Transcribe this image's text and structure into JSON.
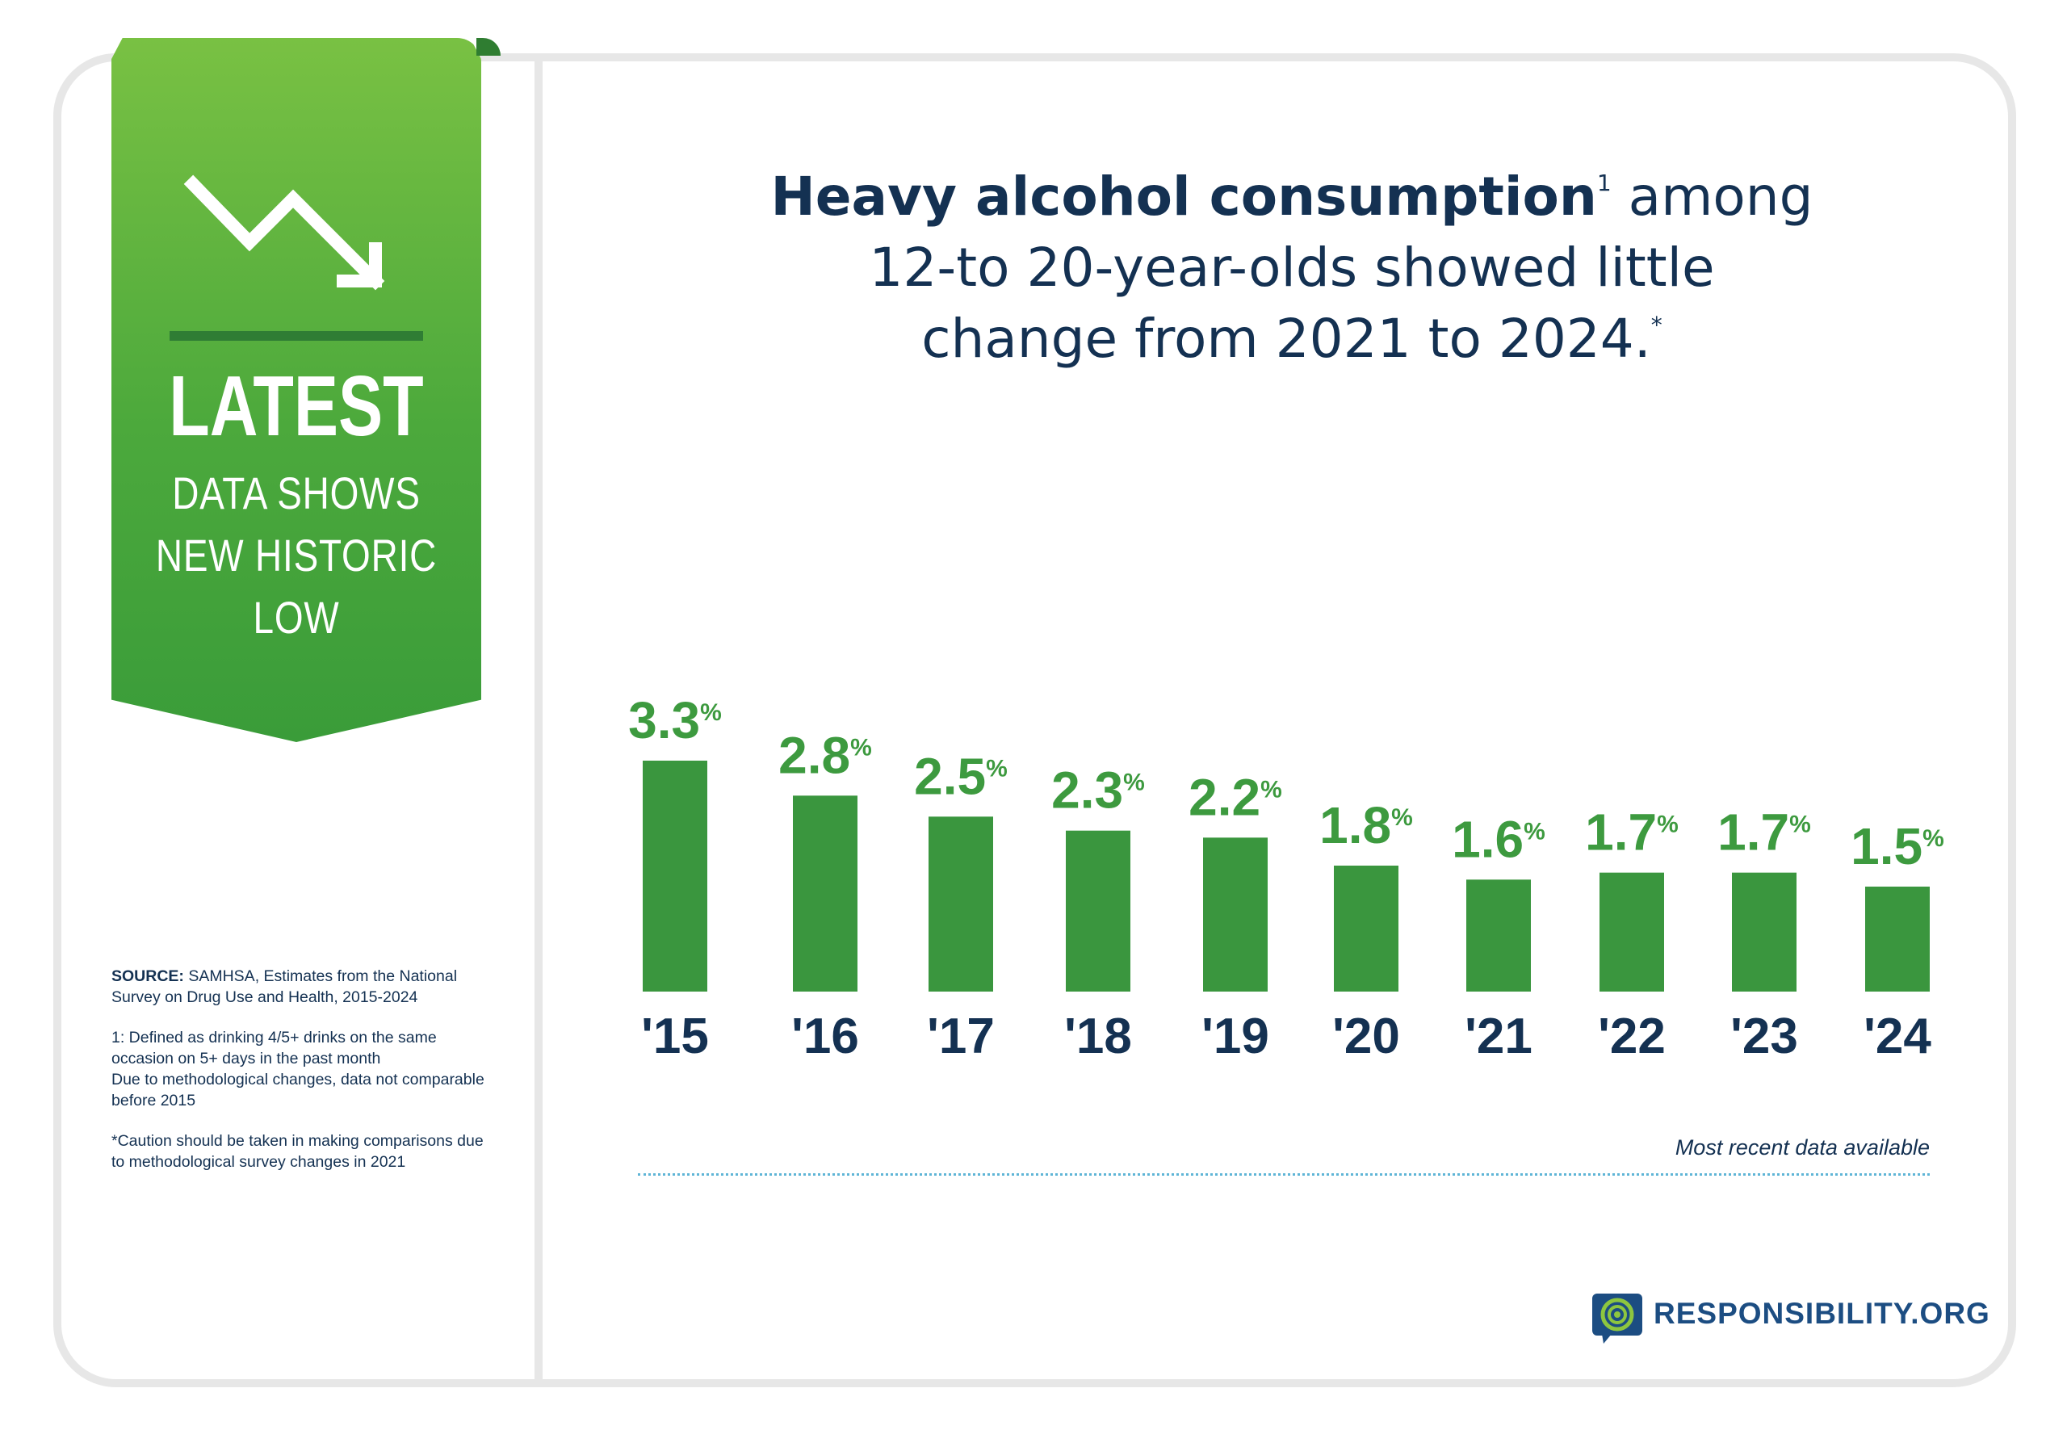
{
  "ribbon": {
    "icon": "trend-down-arrow-icon",
    "latest": "LATEST",
    "lines": [
      "DATA SHOWS",
      "NEW HISTORIC",
      "LOW"
    ]
  },
  "headline": {
    "bold": "Heavy alcohol consumption",
    "footnote_mark": "1",
    "line1_rest": " among",
    "line2": "12-to 20-year-olds showed little",
    "line3": "change from 2021 to 2024.",
    "asterisk": "*"
  },
  "notes": {
    "source_label": "SOURCE:",
    "source_text": " SAMHSA, Estimates from the National Survey on Drug Use and Health, 2015-2024",
    "footnote_1a": "1: Defined as drinking 4/5+ drinks on the same occasion on 5+ days in the past month",
    "footnote_1b": "Due to methodological changes, data not comparable before 2015",
    "caution": "*Caution should be taken in making comparisons due to methodological survey changes in 2021"
  },
  "recent_note": "Most recent data available",
  "brand": {
    "name": "RESPONSIBILITY.ORG",
    "logo_icon": "responsibility-logo-icon",
    "color": "#1c4d82"
  },
  "colors": {
    "bar": "#3a963e",
    "value_label": "#3d9a3f",
    "text": "#143152"
  },
  "chart_data": {
    "type": "bar",
    "categories": [
      "'15",
      "'16",
      "'17",
      "'18",
      "'19",
      "'20",
      "'21",
      "'22",
      "'23",
      "'24"
    ],
    "values": [
      3.3,
      2.8,
      2.5,
      2.3,
      2.2,
      1.8,
      1.6,
      1.7,
      1.7,
      1.5
    ],
    "value_labels": [
      "3.3",
      "2.8",
      "2.5",
      "2.3",
      "2.2",
      "1.8",
      "1.6",
      "1.7",
      "1.7",
      "1.5"
    ],
    "value_suffix": "%",
    "title": "",
    "xlabel": "",
    "ylabel": "",
    "ylim": [
      0,
      3.3
    ],
    "grid": false,
    "legend": "none"
  }
}
